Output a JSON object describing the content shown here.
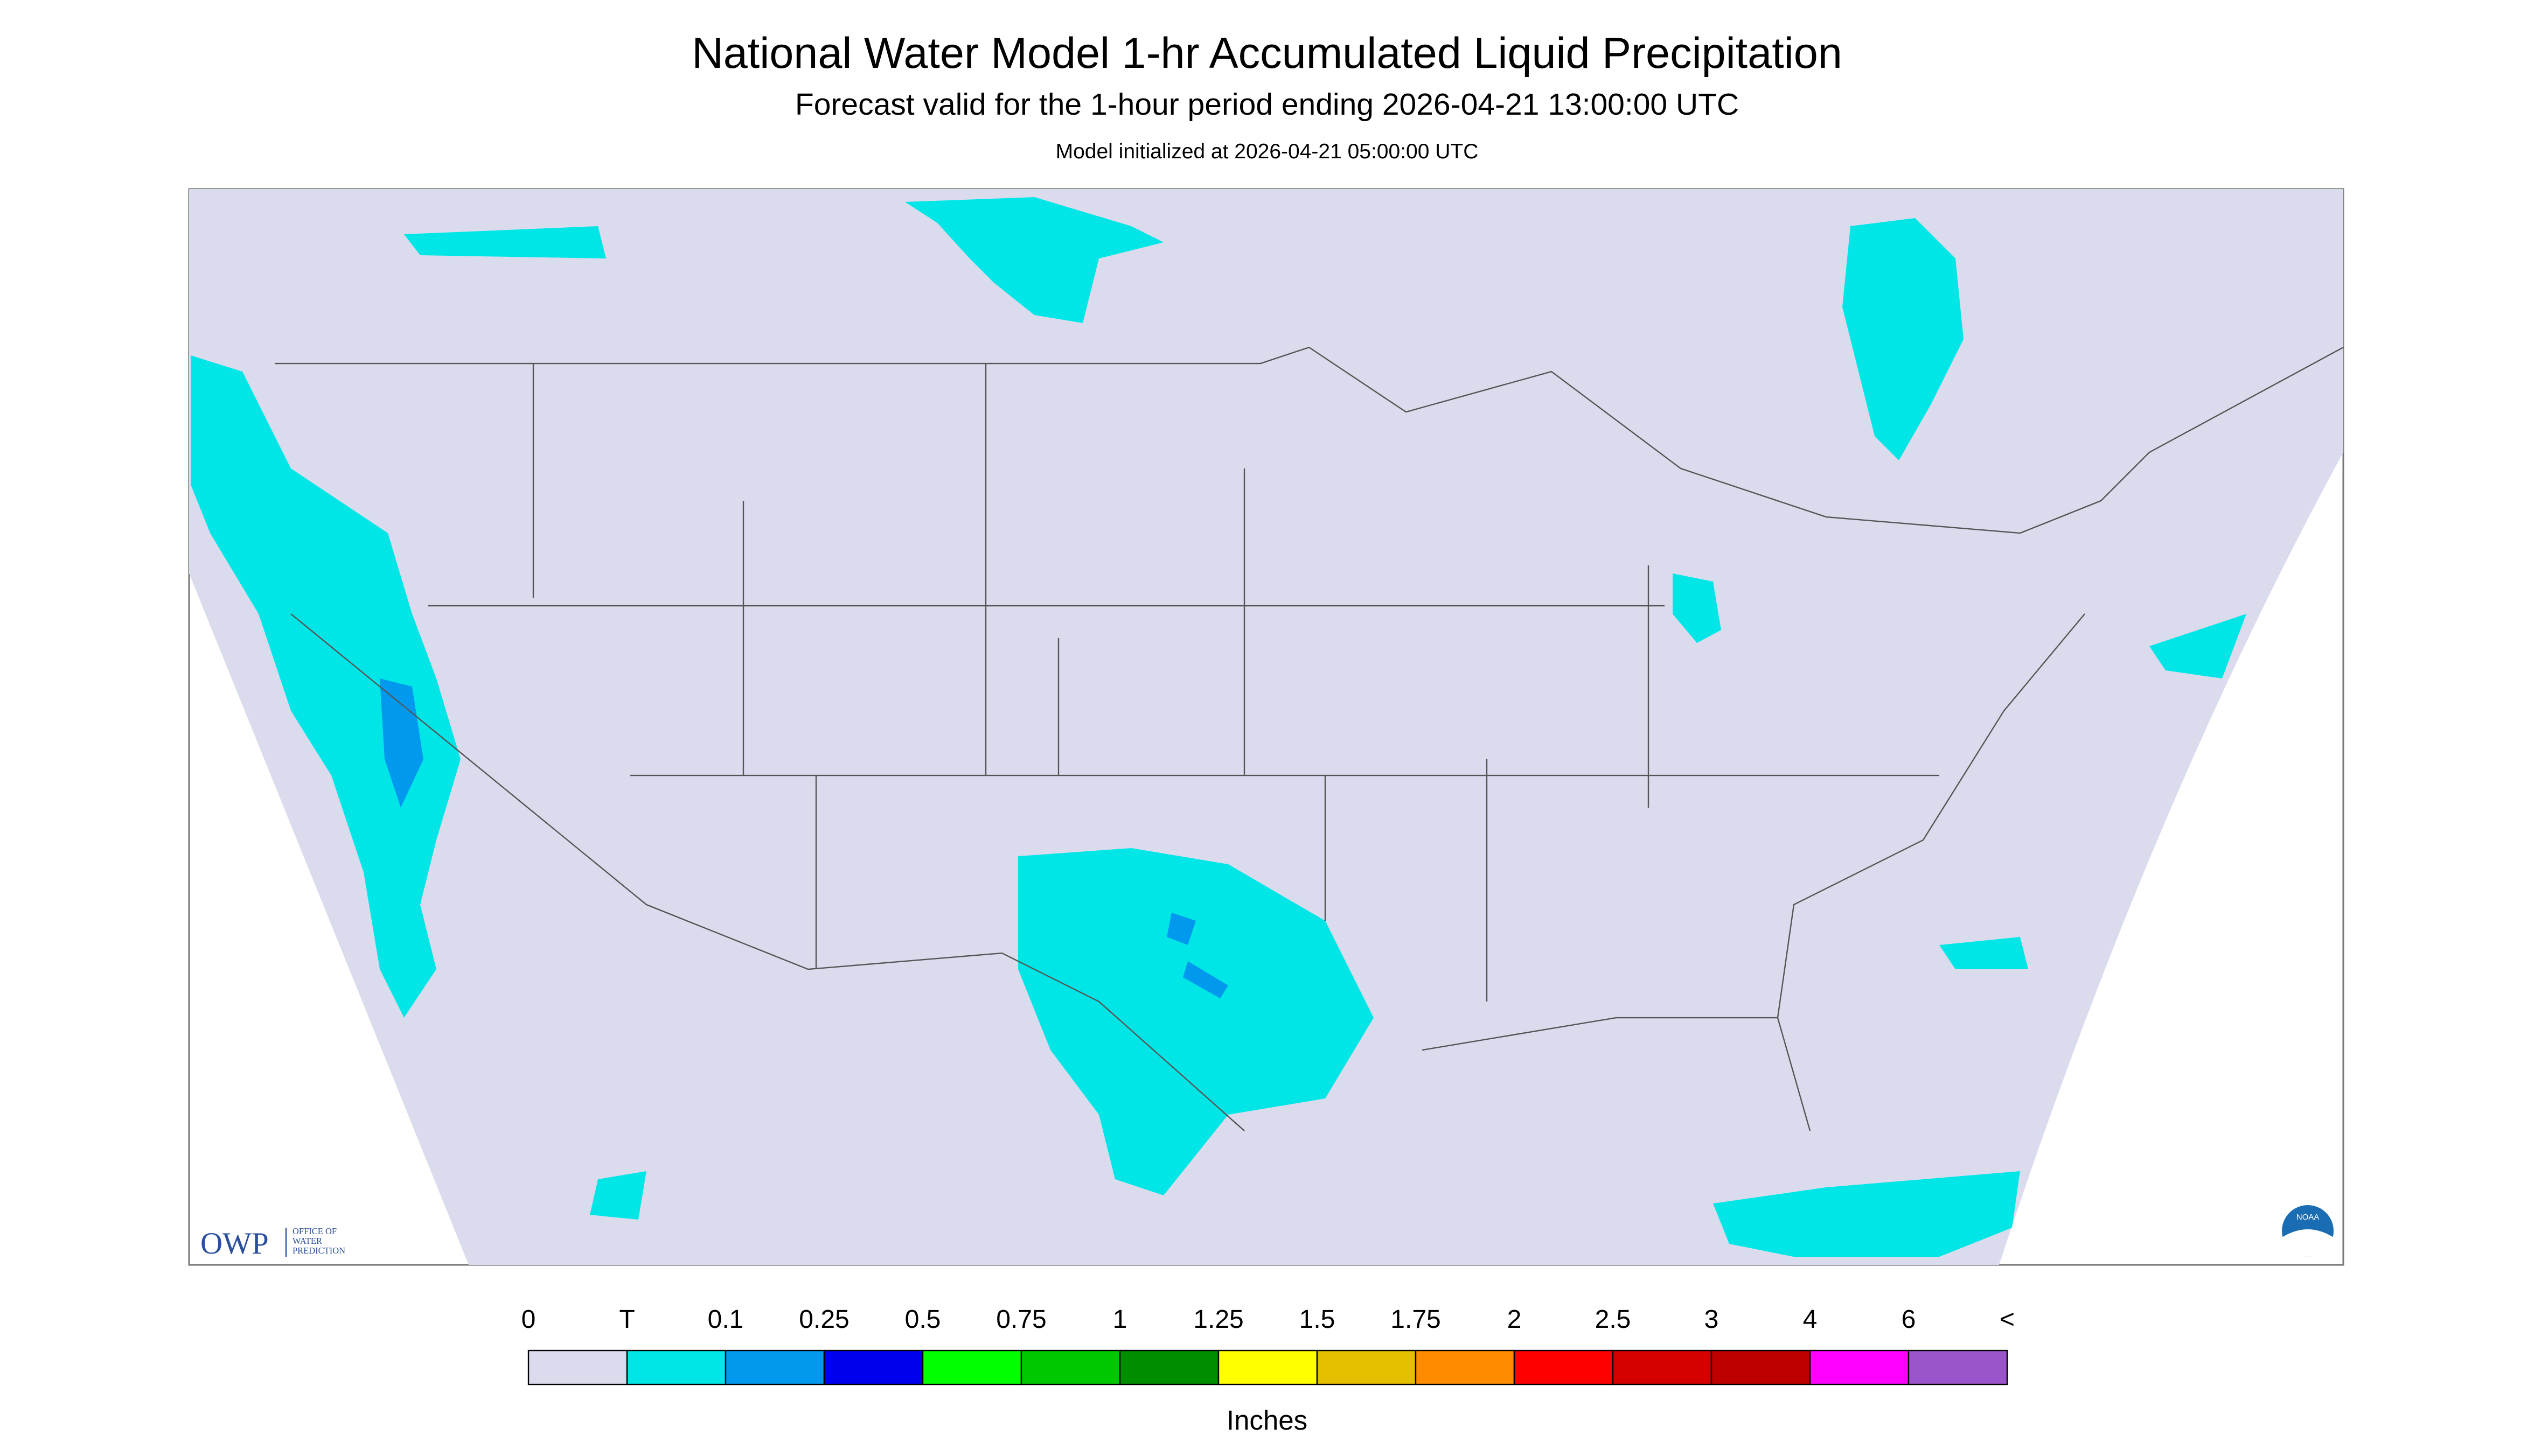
{
  "header": {
    "title": "National Water Model 1-hr Accumulated Liquid Precipitation",
    "subtitle": "Forecast valid for the 1-hour period ending 2026-04-21 13:00:00 UTC",
    "init": "Model initialized at 2026-04-21 05:00:00 UTC"
  },
  "legend": {
    "labels": [
      "0",
      "T",
      "0.1",
      "0.25",
      "0.5",
      "0.75",
      "1",
      "1.25",
      "1.5",
      "1.75",
      "2",
      "2.5",
      "3",
      "4",
      "6",
      "<"
    ],
    "colors": [
      "#dadcee",
      "#00e6e6",
      "#0099ee",
      "#0000ee",
      "#00ff00",
      "#00c800",
      "#008e00",
      "#ffff00",
      "#e6be00",
      "#ff8c00",
      "#ff0000",
      "#d50000",
      "#be0000",
      "#ff00ff",
      "#9955c9"
    ],
    "unit": "Inches"
  },
  "logo": {
    "owp": "OWP",
    "office": [
      "OFFICE OF",
      "WATER",
      "PREDICTION"
    ],
    "noaa": "NOAA"
  }
}
